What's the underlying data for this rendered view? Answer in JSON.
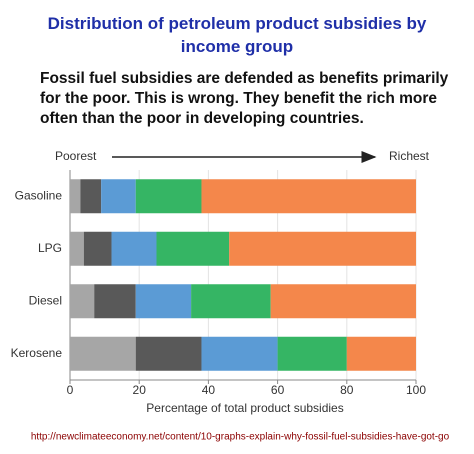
{
  "chart_data": {
    "type": "stacked-barh",
    "title": "Distribution of petroleum product subsidies by income group",
    "subtitle": "Fossil fuel subsidies are defended as benefits primarily for the poor. This is wrong. They benefit the rich more often than the poor in developing countries.",
    "arrow_start_label": "Poorest",
    "arrow_end_label": "Richest",
    "x_label": "Percentage of total product subsidies",
    "source": "http://newclimateeconomy.net/content/10-graphs-explain-why-fossil-fuel-subsidies-have-got-go",
    "categories": [
      "Gasoline",
      "LPG",
      "Diesel",
      "Kerosene"
    ],
    "series": [
      {
        "color": "#a6a6a6",
        "values": [
          3,
          4,
          7,
          19
        ]
      },
      {
        "color": "#595959",
        "values": [
          6,
          8,
          12,
          19
        ]
      },
      {
        "color": "#5b9bd5",
        "values": [
          10,
          13,
          16,
          22
        ]
      },
      {
        "color": "#35b564",
        "values": [
          19,
          21,
          23,
          20
        ]
      },
      {
        "color": "#f4874b",
        "values": [
          62,
          54,
          42,
          20
        ]
      }
    ],
    "xlim": [
      0,
      100
    ],
    "xticks": [
      0,
      20,
      40,
      60,
      80,
      100
    ],
    "grid": true
  }
}
